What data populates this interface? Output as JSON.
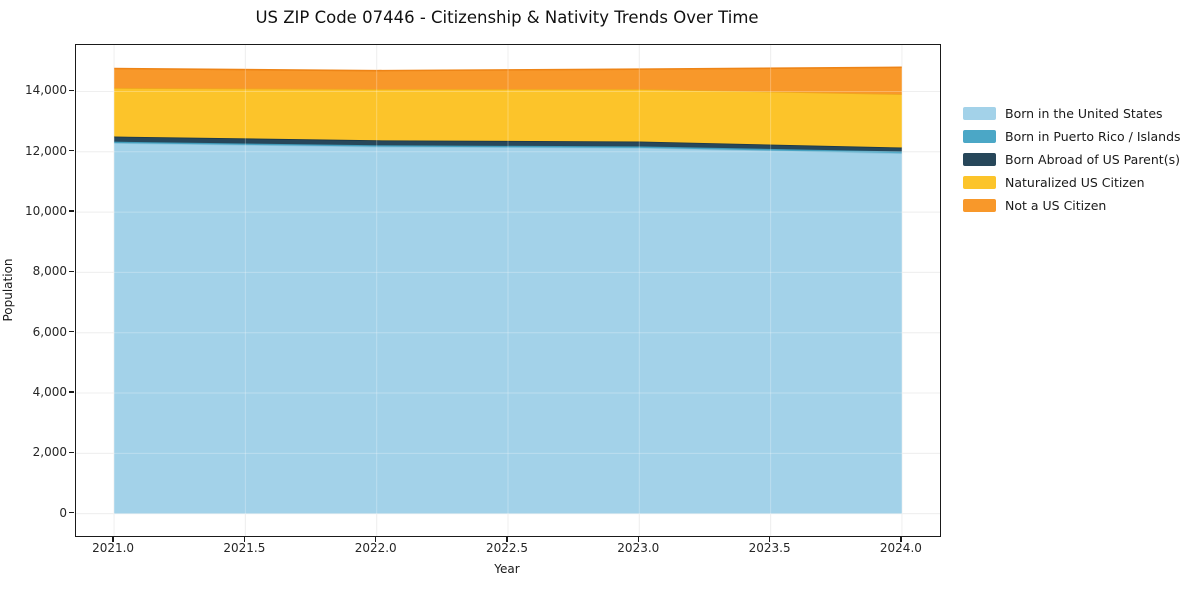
{
  "title": "US ZIP Code 07446 - Citizenship & Nativity Trends Over Time",
  "chart_data": {
    "type": "area",
    "stacked": true,
    "title": "US ZIP Code 07446 - Citizenship & Nativity Trends Over Time",
    "xlabel": "Year",
    "ylabel": "Population",
    "grid": true,
    "legend_position": "right-outside",
    "x": [
      2021,
      2022,
      2023,
      2024
    ],
    "xticks": {
      "values": [
        2021.0,
        2021.5,
        2022.0,
        2022.5,
        2023.0,
        2023.5,
        2024.0
      ],
      "labels": [
        "2021.0",
        "2021.5",
        "2022.0",
        "2022.5",
        "2023.0",
        "2023.5",
        "2024.0"
      ]
    },
    "yticks": {
      "values": [
        0,
        2000,
        4000,
        6000,
        8000,
        10000,
        12000,
        14000
      ],
      "labels": [
        "0",
        "2,000",
        "4,000",
        "6,000",
        "8,000",
        "10,000",
        "12,000",
        "14,000"
      ]
    },
    "xlim": [
      2020.855,
      2024.145
    ],
    "ylim": [
      -740,
      15540
    ],
    "series": [
      {
        "name": "Born in the United States",
        "color": "#A3D2E9",
        "edge_color": "#8CC3DC",
        "values": [
          12290,
          12170,
          12130,
          11950
        ]
      },
      {
        "name": "Born in Puerto Rico / Islands",
        "color": "#4BA7C6",
        "edge_color": "#3E97B5",
        "values": [
          45,
          45,
          50,
          60
        ]
      },
      {
        "name": "Born Abroad of US Parent(s)",
        "color": "#27475A",
        "edge_color": "#1C3848",
        "values": [
          170,
          165,
          160,
          130
        ]
      },
      {
        "name": "Naturalized US Citizen",
        "color": "#FCC42A",
        "edge_color": "#EFA81E",
        "values": [
          1610,
          1700,
          1740,
          1770
        ]
      },
      {
        "name": "Not a US Citizen",
        "color": "#F8982A",
        "edge_color": "#EE8416",
        "values": [
          645,
          610,
          660,
          890
        ]
      }
    ],
    "totals": [
      14760,
      14690,
      14740,
      14800
    ],
    "style": {
      "grid_color": "#E9E9E9",
      "grid_overlay_color": "rgba(255,255,255,0.28)",
      "spine_color": "#1a1a1a",
      "background": "#ffffff"
    }
  }
}
